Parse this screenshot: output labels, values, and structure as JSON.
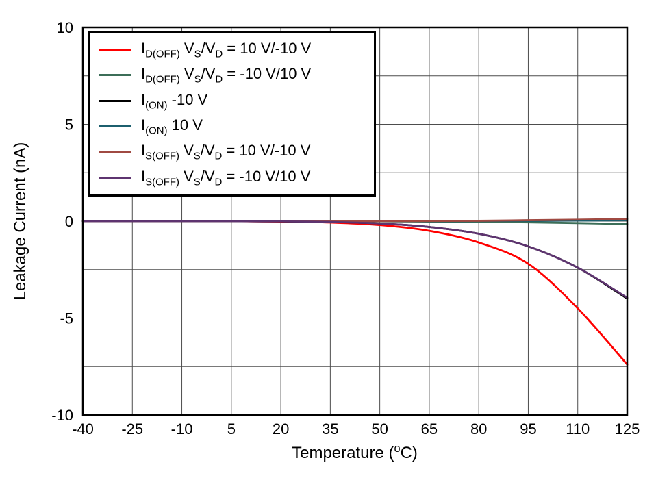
{
  "chart_data": {
    "type": "line",
    "title": "",
    "xlabel": "Temperature (^{o}C)",
    "ylabel": "Leakage Current (nA)",
    "xlim": [
      -40,
      125
    ],
    "ylim": [
      -10,
      10
    ],
    "x_ticks": [
      -40,
      -25,
      -10,
      5,
      20,
      35,
      50,
      65,
      80,
      95,
      110,
      125
    ],
    "y_ticks": [
      -10,
      -5,
      0,
      5,
      10
    ],
    "y_grid_step": 2.5,
    "grid": true,
    "grid_color": "#4d4d4d",
    "axis_color": "#000000",
    "legend_position": "top-left",
    "x": [
      -40,
      -25,
      -10,
      5,
      20,
      35,
      50,
      65,
      80,
      95,
      110,
      125
    ],
    "series": [
      {
        "id": "id-off-vs10-vd-10",
        "name": "I_{D(OFF)} V_{S}/V_{D} = 10 V/-10 V",
        "color": "#ff0000",
        "values": [
          0,
          0,
          0,
          0,
          -0.02,
          -0.07,
          -0.2,
          -0.5,
          -1.1,
          -2.2,
          -4.5,
          -7.4
        ]
      },
      {
        "id": "id-off-vs-10-vd10",
        "name": "I_{D(OFF)} V_{S}/V_{D} = -10 V/10 V",
        "color": "#3c6e58",
        "values": [
          0,
          0,
          0,
          0,
          0,
          0,
          -0.01,
          -0.02,
          -0.04,
          -0.06,
          -0.1,
          -0.15
        ]
      },
      {
        "id": "i-on-minus10v",
        "name": "I_{(ON)} -10 V",
        "color": "#000000",
        "values": [
          0,
          0,
          0,
          0,
          -0.01,
          -0.04,
          -0.12,
          -0.3,
          -0.65,
          -1.3,
          -2.4,
          -4.0
        ]
      },
      {
        "id": "i-on-10v",
        "name": "I_{(ON)} 10 V",
        "color": "#1c5f6e",
        "values": [
          0,
          0,
          0,
          0,
          0,
          0,
          0,
          0,
          0.01,
          0.02,
          0.03,
          0.05
        ]
      },
      {
        "id": "is-off-vs10-vd-10",
        "name": "I_{S(OFF)} V_{S}/V_{D} = 10 V/-10 V",
        "color": "#a04a42",
        "values": [
          0,
          0,
          0,
          0,
          0,
          0,
          0,
          0.01,
          0.02,
          0.05,
          0.08,
          0.12
        ]
      },
      {
        "id": "is-off-vs-10-vd10",
        "name": "I_{S(OFF)} V_{S}/V_{D} = -10 V/10 V",
        "color": "#5e3470",
        "values": [
          0,
          0,
          0,
          0,
          -0.01,
          -0.04,
          -0.12,
          -0.3,
          -0.65,
          -1.3,
          -2.4,
          -3.95
        ]
      }
    ]
  }
}
